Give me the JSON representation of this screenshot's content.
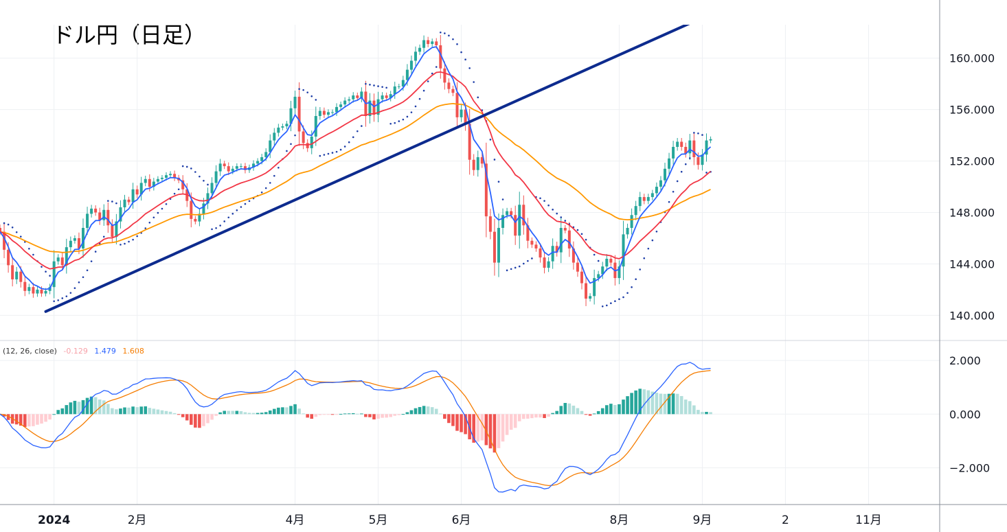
{
  "title": "ドル円（日足）",
  "chart_data": {
    "type": "candlestick",
    "title": "ドル円（日足）",
    "price_axis": {
      "ticks": [
        "140.000",
        "144.000",
        "148.000",
        "152.000",
        "156.000",
        "160.000"
      ],
      "tick_values": [
        140,
        144,
        148,
        152,
        156,
        160
      ],
      "ylim": [
        138.1,
        162.6
      ]
    },
    "macd_axis": {
      "ticks": [
        "2.000",
        "0.000",
        "−2.000"
      ],
      "tick_values": [
        2,
        0,
        -2
      ],
      "ylim": [
        -3.37,
        2.72
      ]
    },
    "time_axis": {
      "labels": [
        "2024",
        "2月",
        "4月",
        "5月",
        "6月",
        "8月",
        "9月",
        "2",
        "11月"
      ],
      "label_index": [
        13,
        33,
        71,
        91,
        111,
        149,
        169,
        189,
        209
      ]
    },
    "indicators": {
      "macd_label": "(12, 26, close)",
      "macd_histogram": "-0.129",
      "macd_line": "1.479",
      "signal_line": "1.608"
    },
    "trendline": {
      "from": [
        11,
        140.3
      ],
      "to": [
        168,
        163.0
      ]
    },
    "closes": [
      146.5,
      145.1,
      143.9,
      142.8,
      143.4,
      142.6,
      141.9,
      142.2,
      141.7,
      142.0,
      141.7,
      141.9,
      142.2,
      144.2,
      144.5,
      143.9,
      145.3,
      145.8,
      146.0,
      145.2,
      146.8,
      147.9,
      148.3,
      148.0,
      147.4,
      148.2,
      147.0,
      146.1,
      147.3,
      148.4,
      149.0,
      148.8,
      149.8,
      149.4,
      150.3,
      150.6,
      150.0,
      150.4,
      150.6,
      150.7,
      150.9,
      151.0,
      150.7,
      150.5,
      149.8,
      148.9,
      147.5,
      147.3,
      147.9,
      148.7,
      149.5,
      150.3,
      151.2,
      151.8,
      151.6,
      151.2,
      151.4,
      151.6,
      151.6,
      151.3,
      151.5,
      151.8,
      152.0,
      152.3,
      152.7,
      153.6,
      154.2,
      154.6,
      154.7,
      154.9,
      156.1,
      157.0,
      154.3,
      153.4,
      153.0,
      153.9,
      155.5,
      155.9,
      155.6,
      155.8,
      155.8,
      156.2,
      156.4,
      156.7,
      156.8,
      157.1,
      156.9,
      157.4,
      155.5,
      156.7,
      155.6,
      156.8,
      157.1,
      156.9,
      157.2,
      157.8,
      157.8,
      158.3,
      159.1,
      159.8,
      160.5,
      160.8,
      161.4,
      161.1,
      161.3,
      161.0,
      159.2,
      158.1,
      157.6,
      157.3,
      155.4,
      156.0,
      154.9,
      152.1,
      151.3,
      152.3,
      151.8,
      147.7,
      146.5,
      144.1,
      146.8,
      147.8,
      148.1,
      147.8,
      146.2,
      148.6,
      147.0,
      145.8,
      145.5,
      145.2,
      144.5,
      143.7,
      144.2,
      145.4,
      144.9,
      146.8,
      146.6,
      145.2,
      144.1,
      143.4,
      142.5,
      141.3,
      141.5,
      142.9,
      143.2,
      143.8,
      144.4,
      144.1,
      142.9,
      143.8,
      146.3,
      146.8,
      147.8,
      148.5,
      149.2,
      148.9,
      149.2,
      149.5,
      150.0,
      150.5,
      151.4,
      152.2,
      153.1,
      153.5,
      153.1,
      152.6,
      153.6,
      152.3,
      151.7,
      152.5,
      153.6,
      153.7
    ],
    "candle_colors": {
      "up": "#26a69a",
      "down": "#ef5350"
    },
    "series_colors": {
      "ema_fast": "#2962ff",
      "ema_mid": "#f23645",
      "ema_slow": "#ff9800",
      "sar": "#1e3ea8",
      "trendline": "#0d2b8e",
      "macd": "#2962ff",
      "signal": "#f57c00",
      "hist_up": "#26a69a",
      "hist_up_weak": "#b2dfdb",
      "hist_down": "#ef5350",
      "hist_down_weak": "#ffcdd2"
    }
  }
}
